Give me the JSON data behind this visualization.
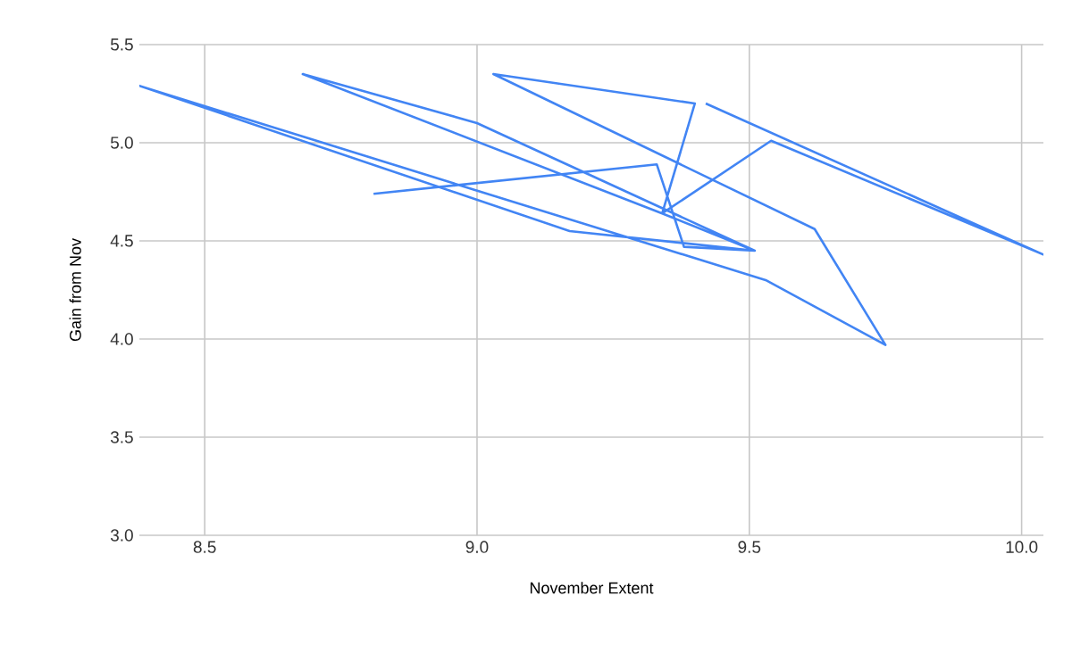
{
  "chart_data": {
    "type": "line",
    "xlabel": "November Extent",
    "ylabel": "Gain from Nov",
    "xlim": [
      8.38,
      10.04
    ],
    "ylim": [
      3.0,
      5.5
    ],
    "xticks": [
      {
        "value": 8.5,
        "label": "8.5"
      },
      {
        "value": 9.0,
        "label": "9.0"
      },
      {
        "value": 9.5,
        "label": "9.5"
      },
      {
        "value": 10.0,
        "label": "10.0"
      }
    ],
    "yticks": [
      {
        "value": 3.0,
        "label": "3.0"
      },
      {
        "value": 3.5,
        "label": "3.5"
      },
      {
        "value": 4.0,
        "label": "4.0"
      },
      {
        "value": 4.5,
        "label": "4.5"
      },
      {
        "value": 5.0,
        "label": "5.0"
      },
      {
        "value": 5.5,
        "label": "5.5"
      }
    ],
    "grid": true,
    "marker": "none",
    "line_style": "solid",
    "series": [
      {
        "color": "#4285f4",
        "x": [
          8.81,
          9.33,
          9.38,
          9.51,
          9.17,
          8.38,
          9.53,
          9.75,
          9.62,
          9.03,
          9.4,
          9.34,
          8.68,
          9.0,
          9.51,
          9.34,
          9.54,
          10.04,
          9.42
        ],
        "values": [
          4.74,
          4.89,
          4.47,
          4.45,
          4.55,
          5.29,
          4.3,
          3.97,
          4.56,
          5.35,
          5.2,
          4.64,
          5.35,
          5.1,
          4.45,
          4.64,
          5.01,
          4.43,
          5.2
        ]
      }
    ]
  }
}
